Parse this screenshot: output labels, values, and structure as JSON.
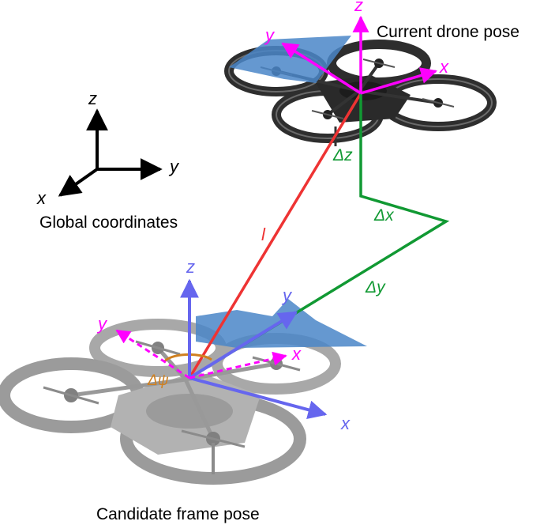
{
  "labels": {
    "current_pose": "Current drone pose",
    "candidate_pose": "Candidate frame pose",
    "global_coords": "Global coordinates"
  },
  "global_axes": {
    "x": "x",
    "y": "y",
    "z": "z"
  },
  "current_axes": {
    "x": "x",
    "y": "y",
    "z": "z"
  },
  "candidate_axes": {
    "x_blue": "x",
    "y_blue": "y",
    "z_blue": "z",
    "x_magenta": "x",
    "y_magenta": "y"
  },
  "displacements": {
    "l": "l",
    "dx": "Δx",
    "dy": "Δy",
    "dz": "Δz",
    "dpsi": "Δψ"
  },
  "colors": {
    "magenta": "#ff00ff",
    "blue_axis": "#6666ee",
    "green": "#119933",
    "red": "#ee3333",
    "orange": "#d08020",
    "plane_blue": "#4a86c8",
    "drone_dark": "#333333",
    "drone_light": "#aaaaaa"
  },
  "icons": [
    "drone-icon"
  ]
}
